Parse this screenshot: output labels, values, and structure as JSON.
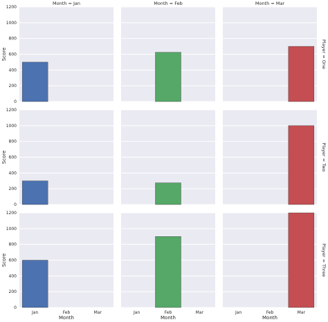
{
  "chart_data": {
    "type": "bar",
    "layout": "facet-grid",
    "col_facet": "Month",
    "row_facet": "Player",
    "col_titles": [
      "Month = Jan",
      "Month = Feb",
      "Month = Mar"
    ],
    "row_titles": [
      "Player = One",
      "Player = Two",
      "Player = Three"
    ],
    "categories": [
      "Jan",
      "Feb",
      "Mar"
    ],
    "xlabel": "Month",
    "ylabel": "Score",
    "ylim": [
      0,
      1200
    ],
    "yticks": [
      0,
      200,
      400,
      600,
      800,
      1000,
      1200
    ],
    "grid": true,
    "colors": [
      "#4c72b0",
      "#55a868",
      "#c44e52"
    ],
    "values": [
      [
        500,
        625,
        700
      ],
      [
        300,
        275,
        1000
      ],
      [
        600,
        900,
        1200
      ]
    ]
  }
}
